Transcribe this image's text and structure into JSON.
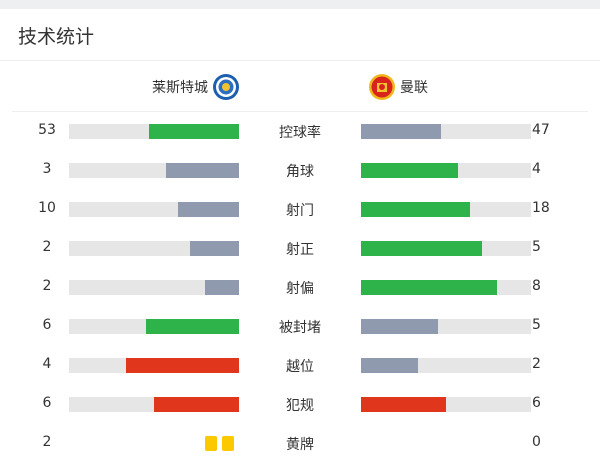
{
  "title": "技术统计",
  "home_team": {
    "name": "莱斯特城",
    "badge_icon": "leicester-city-badge"
  },
  "away_team": {
    "name": "曼联",
    "badge_icon": "manchester-united-badge"
  },
  "colors": {
    "green": "#2db34a",
    "gray": "#8f9aae",
    "red": "#e0361b",
    "track": "#e6e6e6",
    "yellow": "#fcc800"
  },
  "stats": [
    {
      "label": "控球率",
      "home": "53",
      "away": "47",
      "home_color": "#2db34a",
      "away_color": "#8f9aae"
    },
    {
      "label": "角球",
      "home": "3",
      "away": "4",
      "home_color": "#8f9aae",
      "away_color": "#2db34a"
    },
    {
      "label": "射门",
      "home": "10",
      "away": "18",
      "home_color": "#8f9aae",
      "away_color": "#2db34a"
    },
    {
      "label": "射正",
      "home": "2",
      "away": "5",
      "home_color": "#8f9aae",
      "away_color": "#2db34a"
    },
    {
      "label": "射偏",
      "home": "2",
      "away": "8",
      "home_color": "#8f9aae",
      "away_color": "#2db34a"
    },
    {
      "label": "被封堵",
      "home": "6",
      "away": "5",
      "home_color": "#2db34a",
      "away_color": "#8f9aae"
    },
    {
      "label": "越位",
      "home": "4",
      "away": "2",
      "home_color": "#e0361b",
      "away_color": "#8f9aae"
    },
    {
      "label": "犯规",
      "home": "6",
      "away": "6",
      "home_color": "#e0361b",
      "away_color": "#e0361b"
    }
  ],
  "yellow_cards": {
    "label": "黄牌",
    "home": "2",
    "away": "0"
  }
}
